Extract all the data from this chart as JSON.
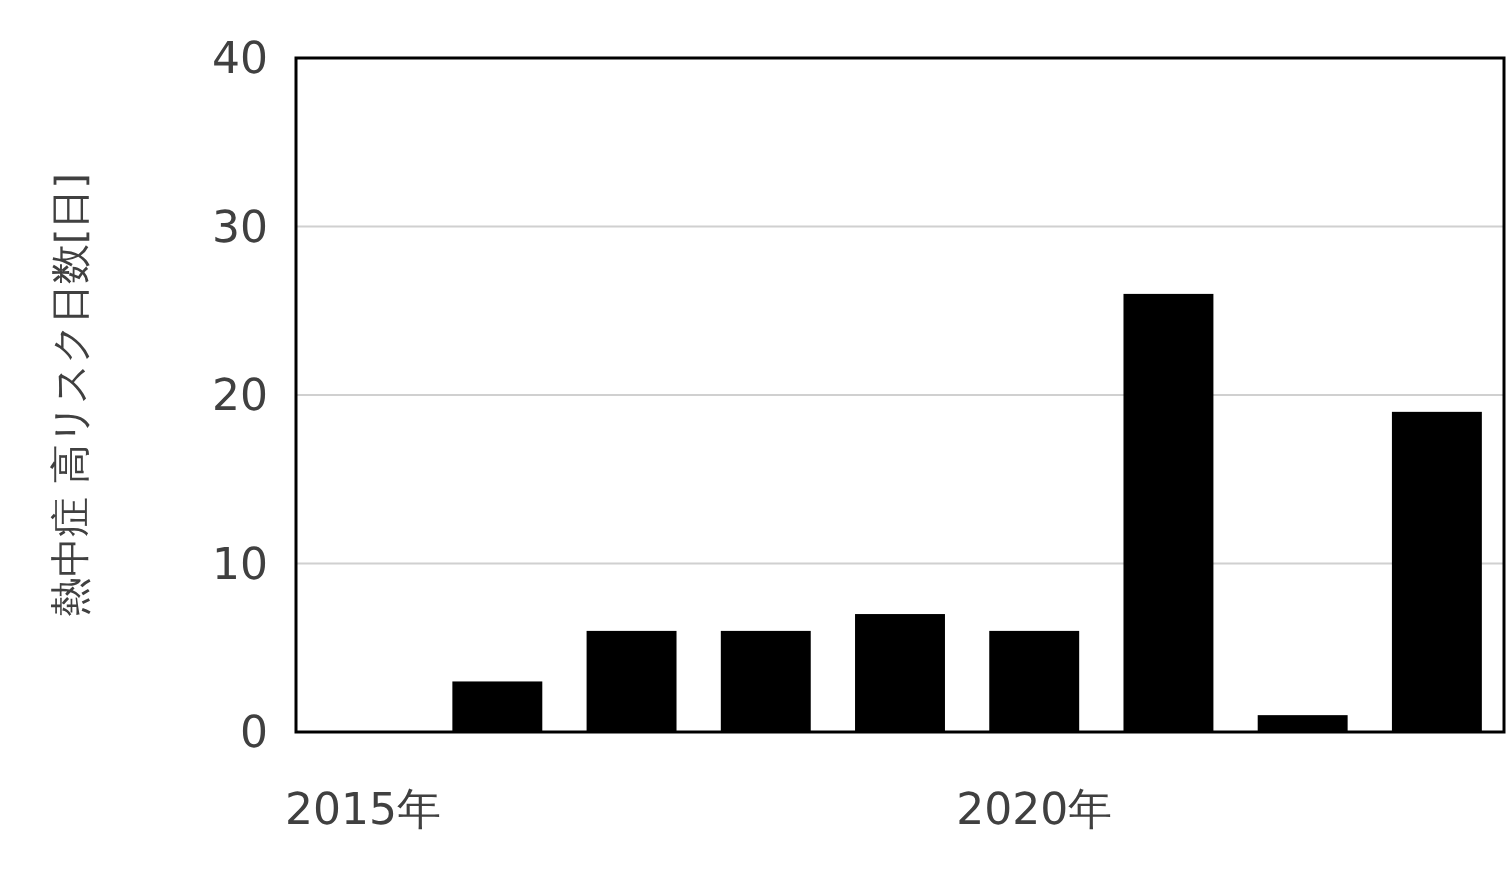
{
  "chart_data": {
    "type": "bar",
    "ylabel": "熱中症 高リスク日数[日]",
    "categories": [
      "2015年",
      null,
      null,
      null,
      null,
      "2020年",
      null,
      null,
      null
    ],
    "values": [
      0,
      3,
      6,
      6,
      7,
      6,
      26,
      1,
      19
    ],
    "color": "#000000",
    "ylim": [
      0,
      40
    ],
    "yticks": [
      0,
      10,
      20,
      30,
      40
    ],
    "grid": "y"
  }
}
